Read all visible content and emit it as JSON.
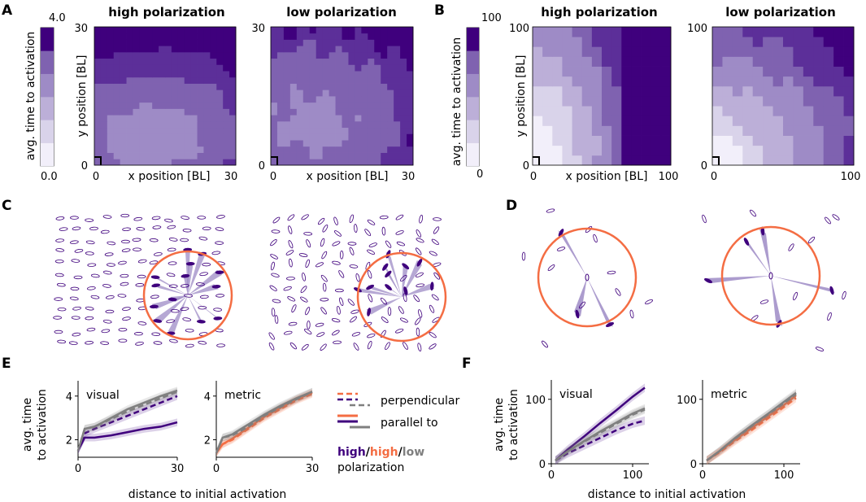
{
  "panel_letters": [
    "A",
    "B",
    "C",
    "D",
    "E",
    "F"
  ],
  "colors": {
    "purple": "#3f007d",
    "orange": "#f46d43",
    "gray": "#7f7f7f",
    "cmap": [
      "#f2effa",
      "#d9d3ea",
      "#bcafd8",
      "#9e8bc6",
      "#7f62b0",
      "#5c2f99",
      "#3f007d"
    ]
  },
  "chart_data": [
    {
      "id": "A",
      "type": "heatmap",
      "colorbar": {
        "label": "avg. time to activation",
        "min_label": "0.0",
        "max_label": "4.0"
      },
      "panels": [
        {
          "title": "high polarization",
          "xlabel": "x position [BL]",
          "ylabel": "y position [BL]",
          "xticks": [
            "0",
            "30"
          ],
          "yticks": [
            "0",
            "30"
          ],
          "pattern": "ellipse-high"
        },
        {
          "title": "low polarization",
          "xlabel": "x position [BL]",
          "ylabel": "",
          "xticks": [
            "0",
            "30"
          ],
          "yticks": [
            "0",
            "30"
          ],
          "pattern": "ellipse-low"
        }
      ]
    },
    {
      "id": "B",
      "type": "heatmap",
      "colorbar": {
        "label": "avg. time to activation",
        "min_label": "0",
        "max_label": "100"
      },
      "panels": [
        {
          "title": "high polarization",
          "xlabel": "x position [BL]",
          "ylabel": "y position [BL]",
          "xticks": [
            "0",
            "100"
          ],
          "yticks": [
            "0",
            "100"
          ],
          "pattern": "radial-high"
        },
        {
          "title": "low polarization",
          "xlabel": "x position [BL]",
          "ylabel": "",
          "xticks": [
            "0",
            "100"
          ],
          "yticks": [
            "0",
            "100"
          ],
          "pattern": "radial-low"
        }
      ]
    },
    {
      "id": "E",
      "type": "line",
      "ylabel": "avg. time\nto activation",
      "xlabel": "distance to initial activation",
      "panels": [
        {
          "title": "visual",
          "xlim": [
            0,
            30
          ],
          "ylim": [
            1.2,
            4.7
          ],
          "xticks": [
            0,
            30
          ],
          "yticks": [
            2,
            4
          ],
          "series": [
            {
              "name": "high, perpendicular",
              "color": "purple",
              "dash": true,
              "x": [
                0,
                2,
                5,
                10,
                15,
                20,
                25,
                30
              ],
              "y": [
                1.5,
                2.3,
                2.5,
                2.8,
                3.1,
                3.4,
                3.7,
                4.0
              ]
            },
            {
              "name": "high, parallel to",
              "color": "purple",
              "dash": false,
              "x": [
                0,
                2,
                5,
                10,
                15,
                20,
                25,
                30
              ],
              "y": [
                1.5,
                2.1,
                2.1,
                2.2,
                2.35,
                2.5,
                2.6,
                2.8
              ]
            },
            {
              "name": "low, perpendicular",
              "color": "gray",
              "dash": true,
              "x": [
                0,
                2,
                5,
                10,
                15,
                20,
                25,
                30
              ],
              "y": [
                1.5,
                2.5,
                2.6,
                2.95,
                3.3,
                3.6,
                3.9,
                4.2
              ]
            },
            {
              "name": "low, parallel to",
              "color": "gray",
              "dash": false,
              "x": [
                0,
                2,
                5,
                10,
                15,
                20,
                25,
                30
              ],
              "y": [
                1.5,
                2.5,
                2.6,
                3.0,
                3.4,
                3.7,
                4.0,
                4.25
              ]
            }
          ]
        },
        {
          "title": "metric",
          "xlim": [
            0,
            30
          ],
          "ylim": [
            1.2,
            4.7
          ],
          "xticks": [
            0,
            30
          ],
          "yticks": [
            2,
            4
          ],
          "series": [
            {
              "name": "high, perpendicular",
              "color": "orange",
              "dash": true,
              "x": [
                0,
                2,
                5,
                10,
                15,
                20,
                25,
                30
              ],
              "y": [
                1.4,
                1.8,
                2.0,
                2.5,
                3.0,
                3.4,
                3.8,
                4.1
              ]
            },
            {
              "name": "high, parallel to",
              "color": "orange",
              "dash": false,
              "x": [
                0,
                2,
                5,
                10,
                15,
                20,
                25,
                30
              ],
              "y": [
                1.4,
                1.8,
                2.05,
                2.55,
                3.05,
                3.45,
                3.85,
                4.15
              ]
            },
            {
              "name": "low, perpendicular",
              "color": "gray",
              "dash": true,
              "x": [
                0,
                2,
                5,
                10,
                15,
                20,
                25,
                30
              ],
              "y": [
                1.4,
                2.1,
                2.2,
                2.6,
                3.1,
                3.5,
                3.85,
                4.2
              ]
            },
            {
              "name": "low, parallel to",
              "color": "gray",
              "dash": false,
              "x": [
                0,
                2,
                5,
                10,
                15,
                20,
                25,
                30
              ],
              "y": [
                1.4,
                2.1,
                2.25,
                2.7,
                3.15,
                3.55,
                3.9,
                4.2
              ]
            }
          ]
        }
      ],
      "legend": {
        "perpendicular": "perpendicular",
        "parallel": "parallel to",
        "high1": "high",
        "high2": "high",
        "low": "low",
        "sep": "/",
        "suffix": "polarization"
      }
    },
    {
      "id": "F",
      "type": "line",
      "ylabel": "avg. time\nto activation",
      "xlabel": "distance to initial activation",
      "panels": [
        {
          "title": "visual",
          "xlim": [
            0,
            120
          ],
          "ylim": [
            0,
            130
          ],
          "xticks": [
            0,
            100
          ],
          "yticks": [
            0,
            100
          ],
          "series": [
            {
              "name": "high, perpendicular",
              "color": "purple",
              "dash": true,
              "x": [
                5,
                20,
                40,
                60,
                80,
                100,
                115
              ],
              "y": [
                5,
                16,
                28,
                40,
                52,
                62,
                67
              ]
            },
            {
              "name": "high, parallel to",
              "color": "purple",
              "dash": false,
              "x": [
                5,
                20,
                40,
                60,
                80,
                100,
                115
              ],
              "y": [
                5,
                22,
                42,
                63,
                83,
                104,
                118
              ]
            },
            {
              "name": "low, perpendicular",
              "color": "gray",
              "dash": true,
              "x": [
                5,
                20,
                40,
                60,
                80,
                100,
                115
              ],
              "y": [
                5,
                19,
                34,
                48,
                62,
                76,
                84
              ]
            },
            {
              "name": "low, parallel to",
              "color": "gray",
              "dash": false,
              "x": [
                5,
                20,
                40,
                60,
                80,
                100,
                115
              ],
              "y": [
                5,
                19,
                35,
                50,
                64,
                78,
                86
              ]
            }
          ]
        },
        {
          "title": "metric",
          "xlim": [
            0,
            120
          ],
          "ylim": [
            0,
            130
          ],
          "xticks": [
            0,
            100
          ],
          "yticks": [
            0,
            100
          ],
          "series": [
            {
              "name": "high, perpendicular",
              "color": "orange",
              "dash": true,
              "x": [
                5,
                20,
                40,
                60,
                80,
                100,
                115
              ],
              "y": [
                5,
                17,
                35,
                52,
                70,
                88,
                102
              ]
            },
            {
              "name": "high, parallel to",
              "color": "orange",
              "dash": false,
              "x": [
                5,
                20,
                40,
                60,
                80,
                100,
                115
              ],
              "y": [
                5,
                18,
                37,
                55,
                73,
                91,
                106
              ]
            },
            {
              "name": "low, perpendicular",
              "color": "gray",
              "dash": true,
              "x": [
                5,
                20,
                40,
                60,
                80,
                100,
                115
              ],
              "y": [
                5,
                19,
                39,
                58,
                76,
                94,
                108
              ]
            },
            {
              "name": "low, parallel to",
              "color": "gray",
              "dash": false,
              "x": [
                5,
                20,
                40,
                60,
                80,
                100,
                115
              ],
              "y": [
                5,
                19,
                40,
                59,
                77,
                96,
                110
              ]
            }
          ]
        }
      ]
    }
  ]
}
